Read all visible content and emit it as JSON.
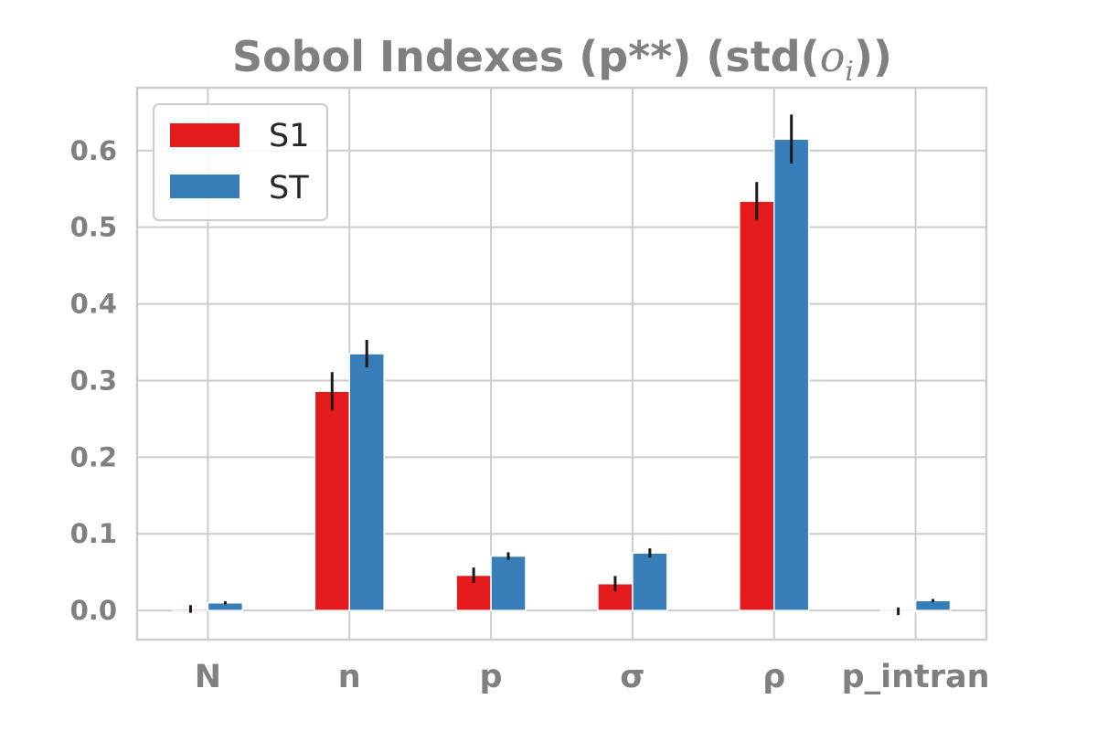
{
  "chart_data": {
    "type": "bar",
    "title_main": "Sobol Indexes (p**) (std(",
    "title_italic": "o",
    "title_subscript": "i",
    "title_end": "))",
    "categories": [
      "N",
      "n",
      "p",
      "σ",
      "ρ",
      "p_intran"
    ],
    "series": [
      {
        "name": "S1",
        "color": "#e41a1c",
        "values": [
          0.002,
          0.286,
          0.046,
          0.035,
          0.534,
          -0.001
        ],
        "errors": [
          0.005,
          0.025,
          0.01,
          0.01,
          0.025,
          0.005
        ]
      },
      {
        "name": "ST",
        "color": "#377eb8",
        "values": [
          0.01,
          0.335,
          0.071,
          0.075,
          0.615,
          0.013
        ],
        "errors": [
          0.002,
          0.018,
          0.005,
          0.006,
          0.032,
          0.002
        ]
      }
    ],
    "yticks": [
      "0.0",
      "0.1",
      "0.2",
      "0.3",
      "0.4",
      "0.5",
      "0.6"
    ],
    "ylim": [
      -0.038,
      0.682
    ],
    "xlabel": "",
    "ylabel": "",
    "grid": true,
    "legend_position": "top-left"
  }
}
